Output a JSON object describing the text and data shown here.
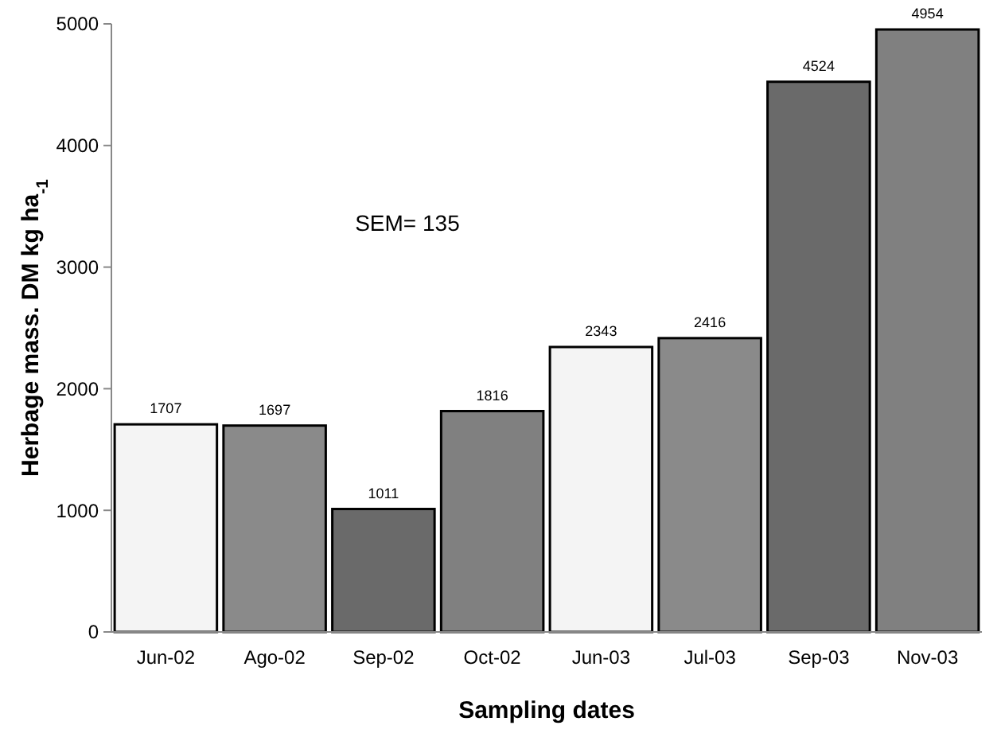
{
  "chart_data": {
    "type": "bar",
    "xlabel": "Sampling dates",
    "ylabel": "Herbage mass. DM  kg ha$_{-1}$",
    "categories": [
      "Jun-02",
      "Ago-02",
      "Sep-02",
      "Oct-02",
      "Jun-03",
      "Jul-03",
      "Sep-03",
      "Nov-03"
    ],
    "values": [
      1707,
      1697,
      1011,
      1816,
      2343,
      2416,
      4524,
      4954
    ],
    "colors": [
      "#f4f4f4",
      "#8a8a8a",
      "#6a6a6a",
      "#808080",
      "#f4f4f4",
      "#8a8a8a",
      "#6a6a6a",
      "#808080"
    ],
    "ylim": [
      0,
      5000
    ],
    "yticks": [
      0,
      1000,
      2000,
      3000,
      4000,
      5000
    ],
    "data_labels": true,
    "grid": false,
    "annotations": [
      "SEM= 135"
    ]
  }
}
